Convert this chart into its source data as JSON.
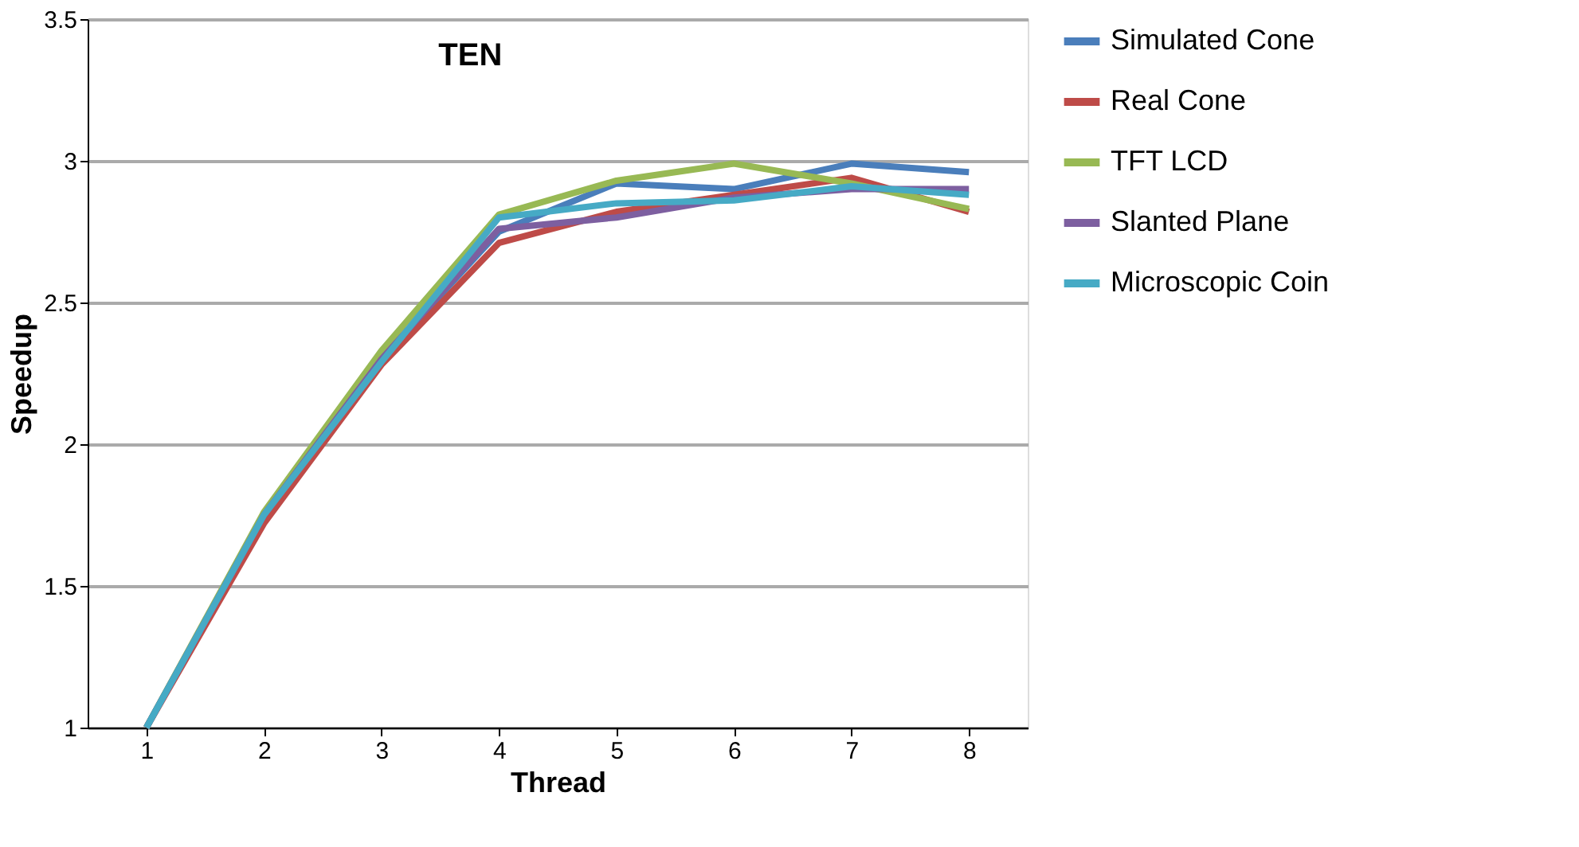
{
  "chart_data": {
    "type": "line",
    "title": "TEN",
    "xlabel": "Thread",
    "ylabel": "Speedup",
    "categories": [
      "1",
      "2",
      "3",
      "4",
      "5",
      "6",
      "7",
      "8"
    ],
    "ylim": [
      1,
      3.5
    ],
    "yticks": [
      1,
      1.5,
      2,
      2.5,
      3,
      3.5
    ],
    "grid": "y",
    "legend": "right",
    "line_style": "solid",
    "marker": "none",
    "series": [
      {
        "name": "Simulated Cone",
        "color": "#4a7ebb",
        "values": [
          1,
          1.75,
          2.3,
          2.75,
          2.92,
          2.9,
          2.99,
          2.96
        ]
      },
      {
        "name": "Real Cone",
        "color": "#be4b48",
        "values": [
          1,
          1.72,
          2.28,
          2.71,
          2.82,
          2.88,
          2.94,
          2.82
        ]
      },
      {
        "name": "TFT LCD",
        "color": "#98b954",
        "values": [
          1,
          1.76,
          2.33,
          2.81,
          2.93,
          2.99,
          2.92,
          2.83
        ]
      },
      {
        "name": "Slanted Plane",
        "color": "#7d5fa0",
        "values": [
          1,
          1.75,
          2.3,
          2.76,
          2.8,
          2.87,
          2.9,
          2.9
        ]
      },
      {
        "name": "Microscopic Coin",
        "color": "#46aac5",
        "values": [
          1,
          1.75,
          2.29,
          2.8,
          2.85,
          2.86,
          2.91,
          2.88
        ]
      }
    ]
  }
}
